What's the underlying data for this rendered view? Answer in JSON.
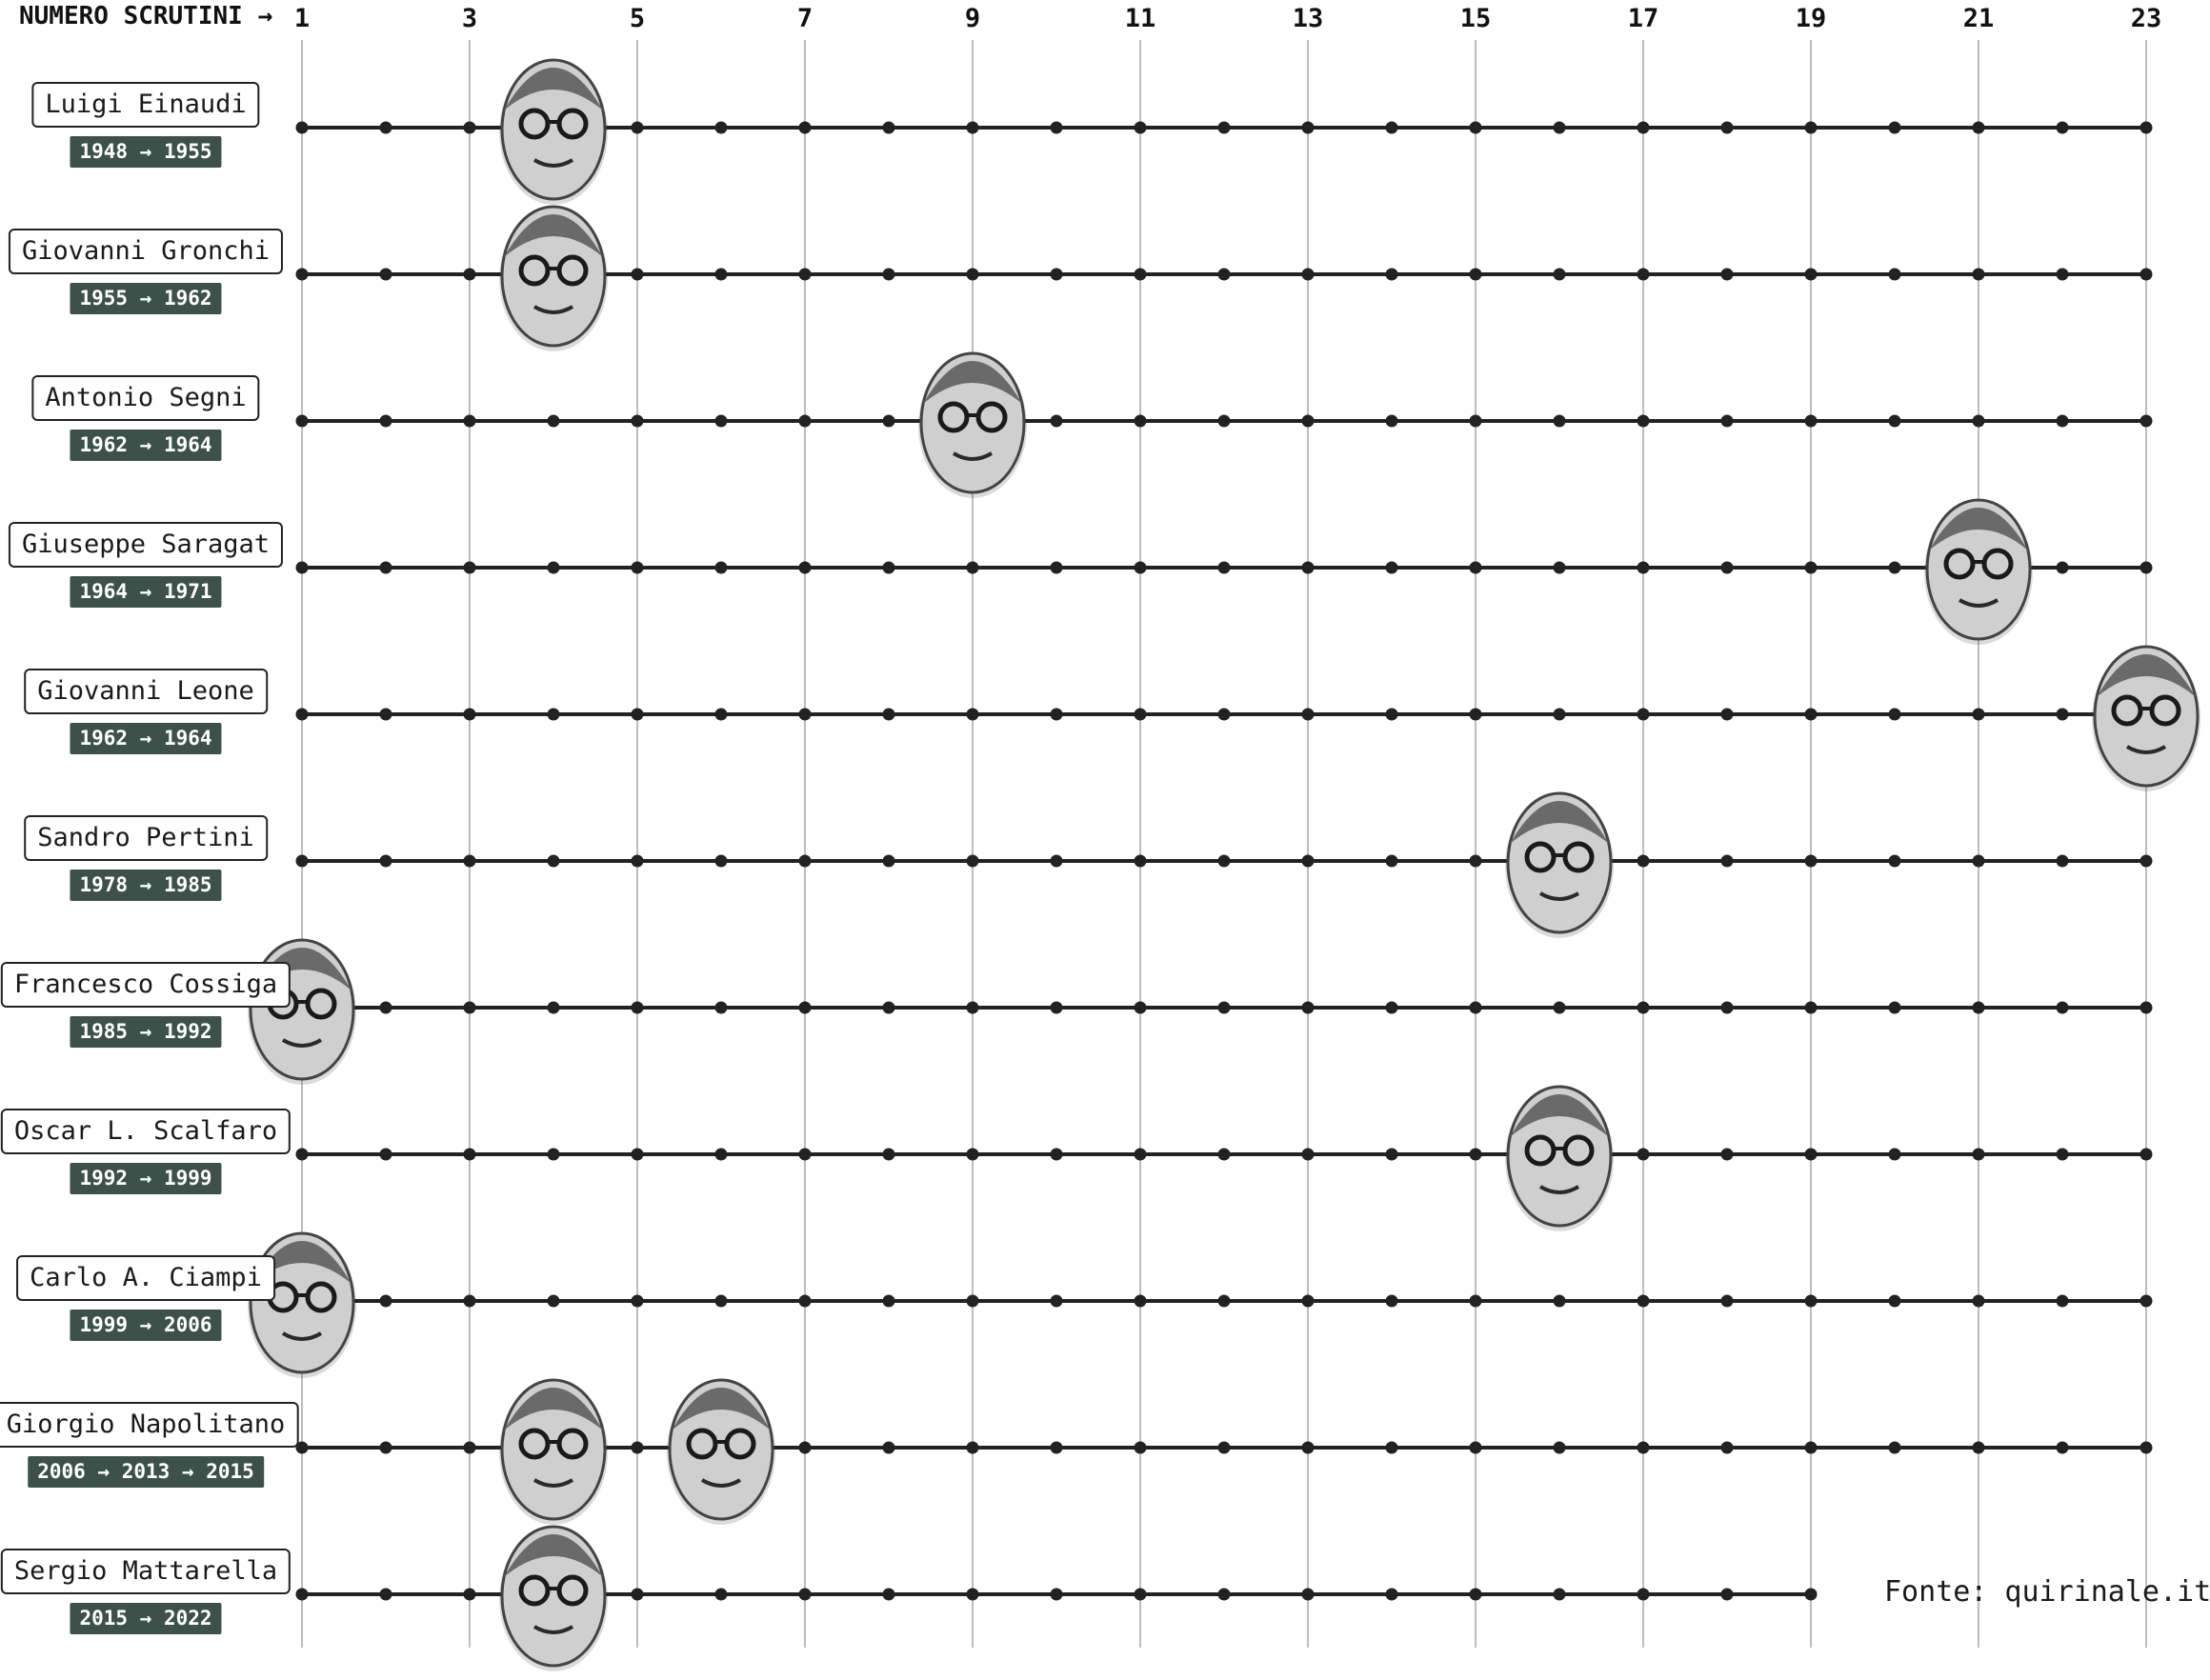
{
  "axis_title": "NUMERO SCRUTINI →",
  "source": "Fonte: quirinale.it",
  "colors": {
    "line": "#222222",
    "grid": "#bdbdbd",
    "badge_bg": "#3b5149",
    "badge_text": "#ffffff",
    "face_fill": "#3a3a3a"
  },
  "chart_data": {
    "type": "scatter",
    "x_ticks": [
      1,
      3,
      5,
      7,
      9,
      11,
      13,
      15,
      17,
      19,
      21,
      23
    ],
    "x_range": [
      1,
      23
    ],
    "grid": true,
    "rows": [
      {
        "name": "Luigi Einaudi",
        "term": "1948 → 1955",
        "ballots_at_election": [
          4
        ],
        "track_end": 23
      },
      {
        "name": "Giovanni Gronchi",
        "term": "1955 → 1962",
        "ballots_at_election": [
          4
        ],
        "track_end": 23
      },
      {
        "name": "Antonio Segni",
        "term": "1962 → 1964",
        "ballots_at_election": [
          9
        ],
        "track_end": 23
      },
      {
        "name": "Giuseppe Saragat",
        "term": "1964 → 1971",
        "ballots_at_election": [
          21
        ],
        "track_end": 23
      },
      {
        "name": "Giovanni Leone",
        "term": "1962 → 1964",
        "ballots_at_election": [
          23
        ],
        "track_end": 23
      },
      {
        "name": "Sandro Pertini",
        "term": "1978 → 1985",
        "ballots_at_election": [
          16
        ],
        "track_end": 23
      },
      {
        "name": "Francesco Cossiga",
        "term": "1985 → 1992",
        "ballots_at_election": [
          1
        ],
        "track_end": 23
      },
      {
        "name": "Oscar L. Scalfaro",
        "term": "1992 → 1999",
        "ballots_at_election": [
          16
        ],
        "track_end": 23
      },
      {
        "name": "Carlo A. Ciampi",
        "term": "1999 → 2006",
        "ballots_at_election": [
          1
        ],
        "track_end": 23
      },
      {
        "name": "Giorgio Napolitano",
        "term": "2006 → 2013 → 2015",
        "ballots_at_election": [
          4,
          6
        ],
        "track_end": 23
      },
      {
        "name": "Sergio Mattarella",
        "term": "2015 → 2022",
        "ballots_at_election": [
          4
        ],
        "track_end": 19
      }
    ]
  }
}
